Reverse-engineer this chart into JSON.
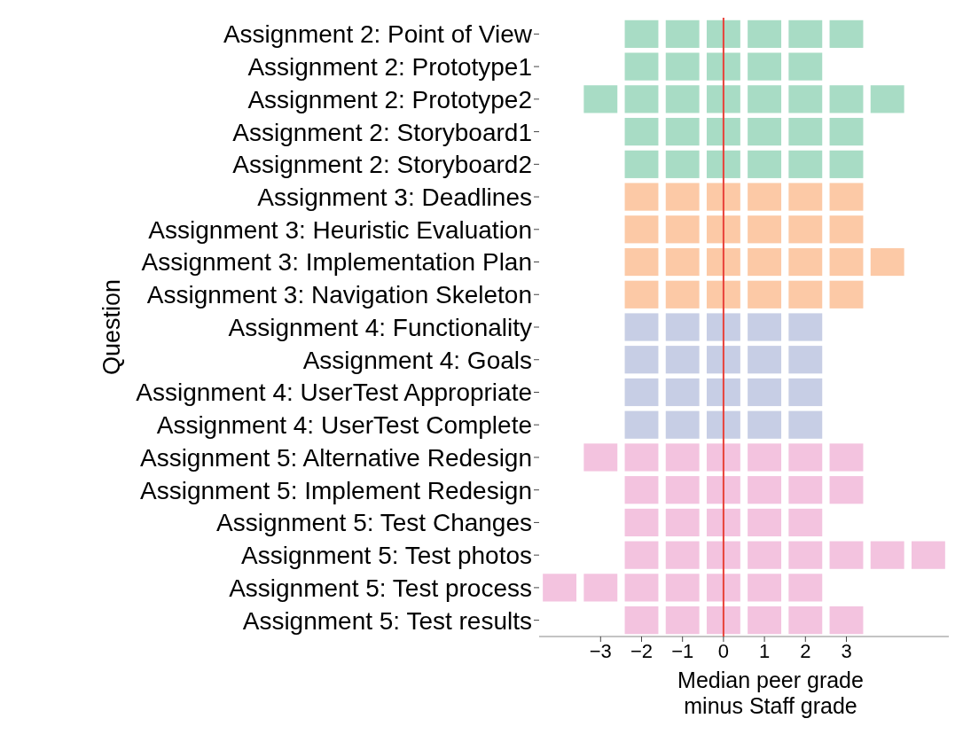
{
  "chart_data": {
    "type": "scatter",
    "orientation": "horizontal",
    "xlabel": "Median peer grade\nminus Staff grade",
    "ylabel": "Question",
    "marker": "square",
    "grid": false,
    "categories": [
      "Assignment 2: Point of View",
      "Assignment 2: Prototype1",
      "Assignment 2: Prototype2",
      "Assignment 2: Storyboard1",
      "Assignment 2: Storyboard2",
      "Assignment 3: Deadlines",
      "Assignment 3: Heuristic Evaluation",
      "Assignment 3: Implementation Plan",
      "Assignment 3: Navigation Skeleton",
      "Assignment 4: Functionality",
      "Assignment 4: Goals",
      "Assignment 4: UserTest Appropriate",
      "Assignment 4: UserTest Complete",
      "Assignment 5: Alternative Redesign",
      "Assignment 5: Implement Redesign",
      "Assignment 5: Test Changes",
      "Assignment 5: Test photos",
      "Assignment 5: Test process",
      "Assignment 5: Test results"
    ],
    "xlim": [
      -4.5,
      5.5
    ],
    "xticks": [
      {
        "value": -3,
        "label": "−3"
      },
      {
        "value": -2,
        "label": "−2"
      },
      {
        "value": -1,
        "label": "−1"
      },
      0,
      1,
      2,
      3
    ],
    "ref_lines": [
      {
        "axis": "x",
        "value": 0,
        "color": "#e8423a"
      }
    ],
    "series": [
      {
        "color": "#a8dcc5",
        "x": [
          "Assignment 2: Point of View",
          "Assignment 2: Point of View",
          "Assignment 2: Point of View",
          "Assignment 2: Point of View",
          "Assignment 2: Point of View",
          "Assignment 2: Point of View",
          "Assignment 2: Prototype1",
          "Assignment 2: Prototype1",
          "Assignment 2: Prototype1",
          "Assignment 2: Prototype1",
          "Assignment 2: Prototype1",
          "Assignment 2: Prototype2",
          "Assignment 2: Prototype2",
          "Assignment 2: Prototype2",
          "Assignment 2: Prototype2",
          "Assignment 2: Prototype2",
          "Assignment 2: Prototype2",
          "Assignment 2: Prototype2",
          "Assignment 2: Prototype2",
          "Assignment 2: Storyboard1",
          "Assignment 2: Storyboard1",
          "Assignment 2: Storyboard1",
          "Assignment 2: Storyboard1",
          "Assignment 2: Storyboard1",
          "Assignment 2: Storyboard1",
          "Assignment 2: Storyboard2",
          "Assignment 2: Storyboard2",
          "Assignment 2: Storyboard2",
          "Assignment 2: Storyboard2",
          "Assignment 2: Storyboard2",
          "Assignment 2: Storyboard2"
        ],
        "values": [
          -2,
          -1,
          0,
          1,
          2,
          3,
          -2,
          -1,
          0,
          1,
          2,
          -3,
          -2,
          -1,
          0,
          1,
          2,
          3,
          4,
          -2,
          -1,
          0,
          1,
          2,
          3,
          -2,
          -1,
          0,
          1,
          2,
          3
        ]
      },
      {
        "color": "#fcc9a6",
        "x": [
          "Assignment 3: Deadlines",
          "Assignment 3: Deadlines",
          "Assignment 3: Deadlines",
          "Assignment 3: Deadlines",
          "Assignment 3: Deadlines",
          "Assignment 3: Deadlines",
          "Assignment 3: Heuristic Evaluation",
          "Assignment 3: Heuristic Evaluation",
          "Assignment 3: Heuristic Evaluation",
          "Assignment 3: Heuristic Evaluation",
          "Assignment 3: Heuristic Evaluation",
          "Assignment 3: Heuristic Evaluation",
          "Assignment 3: Implementation Plan",
          "Assignment 3: Implementation Plan",
          "Assignment 3: Implementation Plan",
          "Assignment 3: Implementation Plan",
          "Assignment 3: Implementation Plan",
          "Assignment 3: Implementation Plan",
          "Assignment 3: Implementation Plan",
          "Assignment 3: Navigation Skeleton",
          "Assignment 3: Navigation Skeleton",
          "Assignment 3: Navigation Skeleton",
          "Assignment 3: Navigation Skeleton",
          "Assignment 3: Navigation Skeleton",
          "Assignment 3: Navigation Skeleton"
        ],
        "values": [
          -2,
          -1,
          0,
          1,
          2,
          3,
          -2,
          -1,
          0,
          1,
          2,
          3,
          -2,
          -1,
          0,
          1,
          2,
          3,
          4,
          -2,
          -1,
          0,
          1,
          2,
          3
        ]
      },
      {
        "color": "#c7cee5",
        "x": [
          "Assignment 4: Functionality",
          "Assignment 4: Functionality",
          "Assignment 4: Functionality",
          "Assignment 4: Functionality",
          "Assignment 4: Functionality",
          "Assignment 4: Goals",
          "Assignment 4: Goals",
          "Assignment 4: Goals",
          "Assignment 4: Goals",
          "Assignment 4: Goals",
          "Assignment 4: UserTest Appropriate",
          "Assignment 4: UserTest Appropriate",
          "Assignment 4: UserTest Appropriate",
          "Assignment 4: UserTest Appropriate",
          "Assignment 4: UserTest Appropriate",
          "Assignment 4: UserTest Complete",
          "Assignment 4: UserTest Complete",
          "Assignment 4: UserTest Complete",
          "Assignment 4: UserTest Complete",
          "Assignment 4: UserTest Complete"
        ],
        "values": [
          -2,
          -1,
          0,
          1,
          2,
          -2,
          -1,
          0,
          1,
          2,
          -2,
          -1,
          0,
          1,
          2,
          -2,
          -1,
          0,
          1,
          2
        ]
      },
      {
        "color": "#f3c3df",
        "x": [
          "Assignment 5: Alternative Redesign",
          "Assignment 5: Alternative Redesign",
          "Assignment 5: Alternative Redesign",
          "Assignment 5: Alternative Redesign",
          "Assignment 5: Alternative Redesign",
          "Assignment 5: Alternative Redesign",
          "Assignment 5: Alternative Redesign",
          "Assignment 5: Implement Redesign",
          "Assignment 5: Implement Redesign",
          "Assignment 5: Implement Redesign",
          "Assignment 5: Implement Redesign",
          "Assignment 5: Implement Redesign",
          "Assignment 5: Implement Redesign",
          "Assignment 5: Test Changes",
          "Assignment 5: Test Changes",
          "Assignment 5: Test Changes",
          "Assignment 5: Test Changes",
          "Assignment 5: Test Changes",
          "Assignment 5: Test photos",
          "Assignment 5: Test photos",
          "Assignment 5: Test photos",
          "Assignment 5: Test photos",
          "Assignment 5: Test photos",
          "Assignment 5: Test photos",
          "Assignment 5: Test photos",
          "Assignment 5: Test photos",
          "Assignment 5: Test process",
          "Assignment 5: Test process",
          "Assignment 5: Test process",
          "Assignment 5: Test process",
          "Assignment 5: Test process",
          "Assignment 5: Test process",
          "Assignment 5: Test process",
          "Assignment 5: Test results",
          "Assignment 5: Test results",
          "Assignment 5: Test results",
          "Assignment 5: Test results",
          "Assignment 5: Test results",
          "Assignment 5: Test results"
        ],
        "values": [
          -3,
          -2,
          -1,
          0,
          1,
          2,
          3,
          -2,
          -1,
          0,
          1,
          2,
          3,
          -2,
          -1,
          0,
          1,
          2,
          -2,
          -1,
          0,
          1,
          2,
          3,
          4,
          5,
          -4,
          -3,
          -2,
          -1,
          0,
          1,
          2,
          -2,
          -1,
          0,
          1,
          2,
          3
        ]
      }
    ]
  }
}
